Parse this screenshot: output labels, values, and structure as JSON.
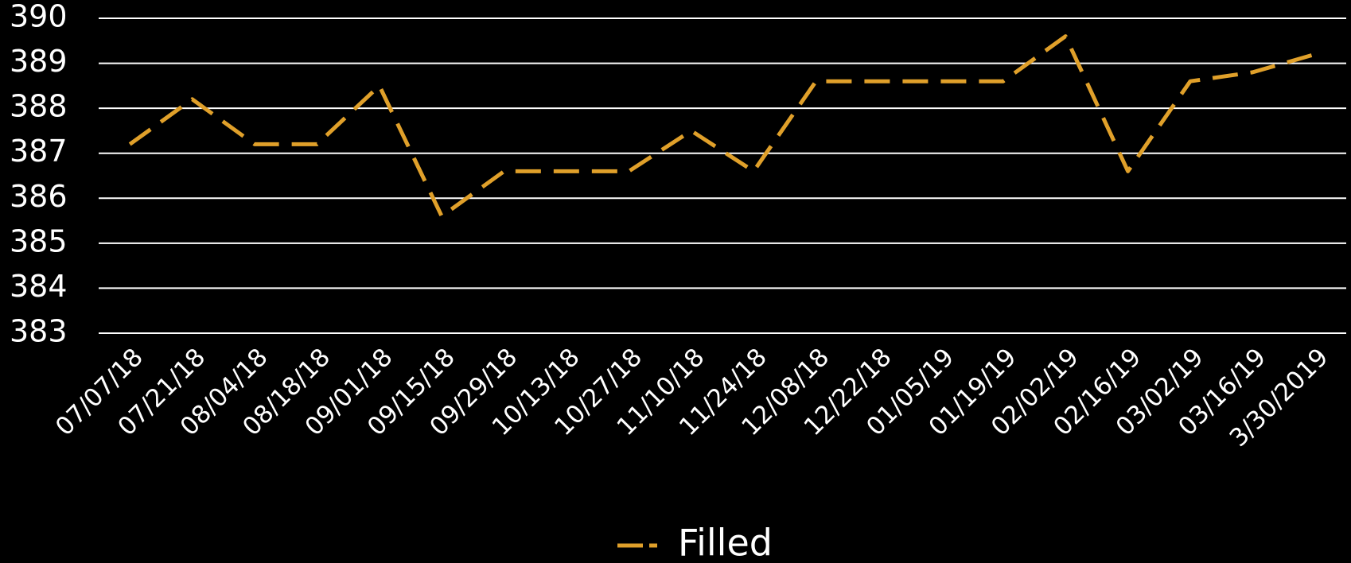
{
  "chart_data": {
    "type": "line",
    "categories": [
      "07/07/18",
      "07/21/18",
      "08/04/18",
      "08/18/18",
      "09/01/18",
      "09/15/18",
      "09/29/18",
      "10/13/18",
      "10/27/18",
      "11/10/18",
      "11/24/18",
      "12/08/18",
      "12/22/18",
      "01/05/19",
      "01/19/19",
      "02/02/19",
      "02/16/19",
      "03/02/19",
      "03/16/19",
      "3/30/2019"
    ],
    "series": [
      {
        "name": "Filled",
        "color": "#e0a02a",
        "dashed": true,
        "values": [
          387.2,
          388.2,
          387.2,
          387.2,
          388.5,
          385.6,
          386.6,
          386.6,
          386.6,
          387.5,
          386.6,
          388.6,
          388.6,
          388.6,
          388.6,
          389.6,
          386.6,
          388.6,
          388.8,
          389.2
        ]
      }
    ],
    "ylim": [
      383,
      390
    ],
    "yticks": [
      383,
      384,
      385,
      386,
      387,
      388,
      389,
      390
    ],
    "grid": true,
    "legend": "bottom"
  }
}
